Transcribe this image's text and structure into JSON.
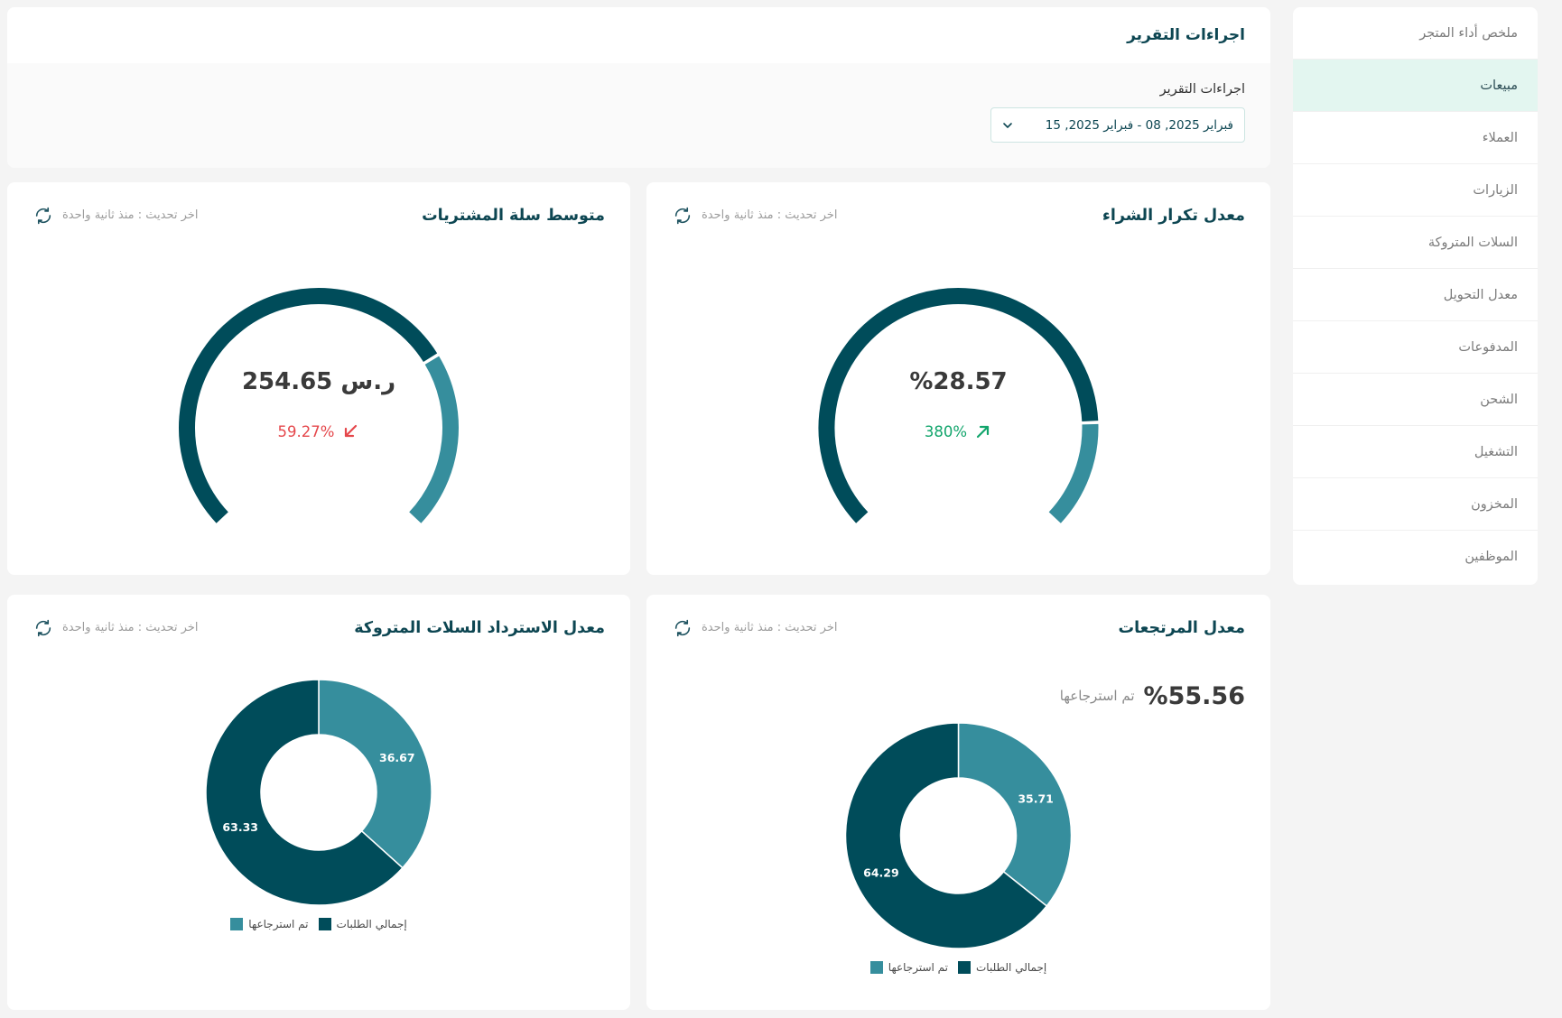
{
  "sidebar": {
    "items": [
      {
        "label": "ملخص أداء المتجر",
        "active": false
      },
      {
        "label": "مبيعات",
        "active": true
      },
      {
        "label": "العملاء",
        "active": false
      },
      {
        "label": "الزيارات",
        "active": false
      },
      {
        "label": "السلات المتروكة",
        "active": false
      },
      {
        "label": "معدل التحويل",
        "active": false
      },
      {
        "label": "المدفوعات",
        "active": false
      },
      {
        "label": "الشحن",
        "active": false
      },
      {
        "label": "التشغيل",
        "active": false
      },
      {
        "label": "المخزون",
        "active": false
      },
      {
        "label": "الموظفين",
        "active": false
      }
    ]
  },
  "report_panel": {
    "title": "اجراءات التقرير",
    "date_range_label": "اجراءات التقرير",
    "date_range_value": "فبراير 2025, 08 - فبراير 2025, 15"
  },
  "colors": {
    "primary_dark": "#004c5a",
    "primary_light": "#368e9d",
    "increase": "#12a56c",
    "decrease": "#e5474b",
    "active_bg": "#e3f6f0"
  },
  "cards": {
    "avg_basket": {
      "title": "متوسط سلة المشتريات",
      "last_update": "اخر تحديث : منذ ثانية واحدة",
      "value": "254.65 ر.س",
      "change": "59.27%",
      "gauge": {
        "filled_fraction": 0.72
      }
    },
    "repeat_purchase": {
      "title": "معدل تكرار الشراء",
      "last_update": "اخر تحديث : منذ ثانية واحدة",
      "value": "%28.57",
      "change": "380%",
      "gauge": {
        "filled_fraction": 0.83
      }
    },
    "abandoned_recovery": {
      "title": "معدل الاسترداد السلات المتروكة",
      "last_update": "اخر تحديث : منذ ثانية واحدة",
      "series": [
        {
          "name": "تم استرجاعها",
          "value": 36.67,
          "color": "#368e9d"
        },
        {
          "name": "إجمالي الطلبات",
          "value": 63.33,
          "color": "#004c5a"
        }
      ]
    },
    "returns_rate": {
      "title": "معدل المرتجعات",
      "last_update": "اخر تحديث : منذ ثانية واحدة",
      "value": "%55.56",
      "value_caption": "تم استرجاعها",
      "series": [
        {
          "name": "تم استرجاعها",
          "value": 35.71,
          "color": "#368e9d"
        },
        {
          "name": "إجمالي الطلبات",
          "value": 64.29,
          "color": "#004c5a"
        }
      ]
    }
  }
}
